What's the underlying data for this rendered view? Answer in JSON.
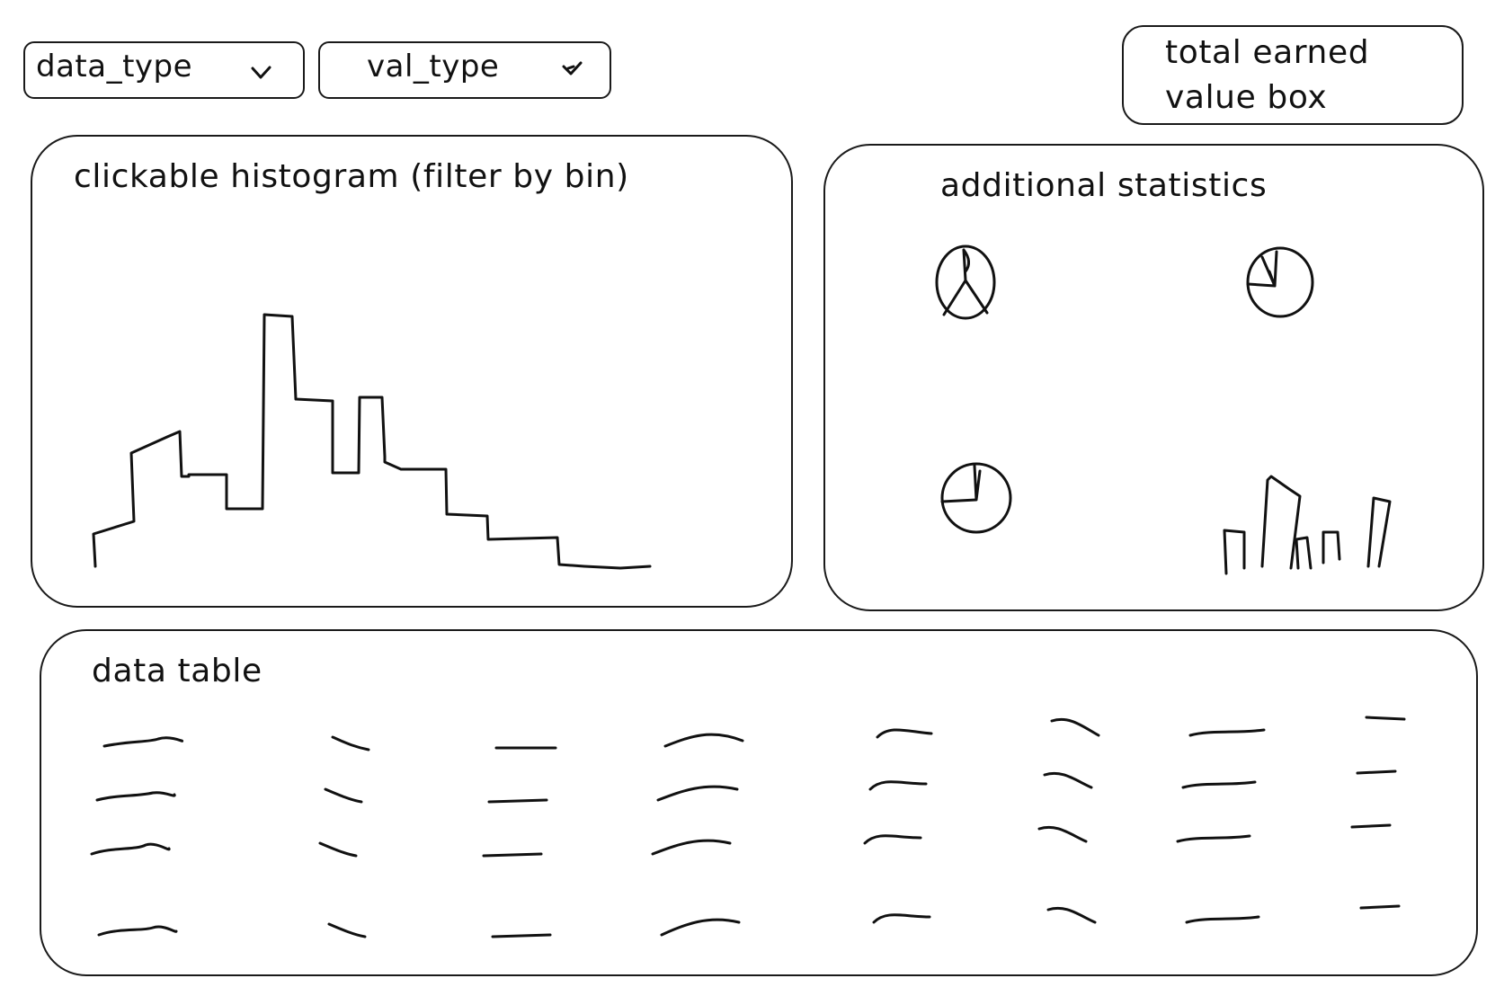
{
  "filters": {
    "data_type": {
      "label": "data_type",
      "icon": "chevron-down-icon"
    },
    "val_type": {
      "label": "val_type",
      "icon": "chevron-down-icon"
    }
  },
  "total_box": {
    "label": "total earned\nvalue box"
  },
  "histogram_panel": {
    "title": "clickable histogram (filter by bin)"
  },
  "stats_panel": {
    "title": "additional statistics",
    "mini_charts": [
      "pie-chart-icon",
      "pie-chart-icon",
      "pie-chart-icon",
      "bar-chart-icon"
    ]
  },
  "table_panel": {
    "title": "data table",
    "rows": 4,
    "columns": 8
  }
}
